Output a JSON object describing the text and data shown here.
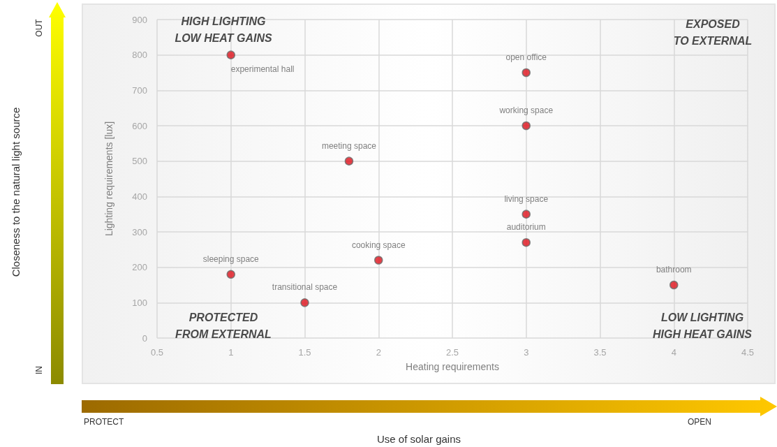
{
  "chart_data": {
    "type": "scatter",
    "xlabel": "Heating requirements",
    "ylabel": "Lighting requirements [lux]",
    "x": [
      1,
      3,
      3,
      1.8,
      3,
      3,
      2,
      1,
      1.5,
      4
    ],
    "values": [
      800,
      750,
      600,
      500,
      350,
      270,
      220,
      180,
      100,
      150
    ],
    "color": "#e0101a",
    "marker": "circle",
    "grid": true,
    "xlim": [
      0.5,
      4.5
    ],
    "xticks": [
      0.5,
      1,
      1.5,
      2,
      2.5,
      3,
      3.5,
      4,
      4.5
    ],
    "ylim": [
      0,
      900
    ],
    "yticks": [
      0,
      100,
      200,
      300,
      400,
      500,
      600,
      700,
      800,
      900
    ],
    "annotations": [
      {
        "text": "experimental hall",
        "x": 1,
        "y": 800
      },
      {
        "text": "open office",
        "x": 3,
        "y": 750
      },
      {
        "text": "working space",
        "x": 3,
        "y": 600
      },
      {
        "text": "meeting space",
        "x": 1.8,
        "y": 500
      },
      {
        "text": "living space",
        "x": 3,
        "y": 350
      },
      {
        "text": "auditorium",
        "x": 3,
        "y": 270
      },
      {
        "text": "cooking space",
        "x": 2,
        "y": 220
      },
      {
        "text": "sleeping space",
        "x": 1,
        "y": 180
      },
      {
        "text": "transitional space",
        "x": 1.5,
        "y": 100
      },
      {
        "text": "bathroom",
        "x": 4,
        "y": 150
      },
      "HIGH LIGHTING\nLOW HEAT GAINS",
      "EXPOSED\nTO EXTERNAL",
      "PROTECTED\nFROM EXTERNAL",
      "LOW LIGHTING\nHIGH HEAT GAINS",
      "Closeness to the natural light source",
      "OUT",
      "IN",
      "Use of solar gains",
      "PROTECT",
      "OPEN"
    ]
  }
}
